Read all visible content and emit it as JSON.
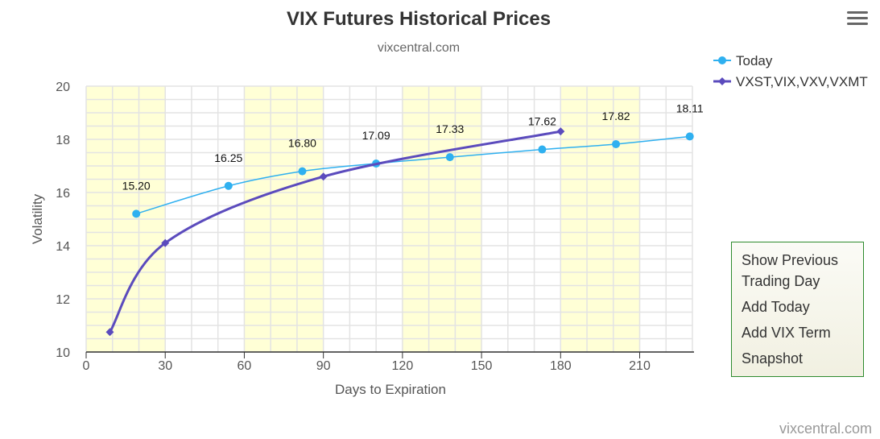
{
  "chart_data": {
    "type": "line",
    "title": "VIX Futures Historical Prices",
    "subtitle": "vixcentral.com",
    "xlabel": "Days to Expiration",
    "ylabel": "Volatility",
    "xlim": [
      0,
      230
    ],
    "ylim": [
      10,
      20
    ],
    "x_ticks": [
      0,
      30,
      60,
      90,
      120,
      150,
      180,
      210
    ],
    "y_ticks": [
      10,
      12,
      14,
      16,
      18,
      20
    ],
    "shaded_bands": [
      [
        0,
        30
      ],
      [
        60,
        90
      ],
      [
        120,
        150
      ],
      [
        180,
        210
      ]
    ],
    "grid": true,
    "legend_position": "top-right",
    "series": [
      {
        "name": "Today",
        "color": "#2fb0f0",
        "marker": "circle",
        "x": [
          19,
          54,
          82,
          110,
          138,
          173,
          201,
          229
        ],
        "y": [
          15.2,
          16.25,
          16.8,
          17.09,
          17.33,
          17.62,
          17.82,
          18.11
        ],
        "labels": [
          "15.20",
          "16.25",
          "16.80",
          "17.09",
          "17.33",
          "17.62",
          "17.82",
          "18.11"
        ]
      },
      {
        "name": "VXST,VIX,VXV,VXMT",
        "color": "#5b4bbd",
        "marker": "diamond",
        "x": [
          9,
          30,
          90,
          180
        ],
        "y": [
          10.75,
          14.1,
          16.6,
          18.3
        ]
      }
    ]
  },
  "menu": {
    "items": [
      "Show Previous Trading Day",
      "Add Today",
      "Add VIX Term",
      "Snapshot"
    ]
  },
  "credits": "vixcentral.com"
}
